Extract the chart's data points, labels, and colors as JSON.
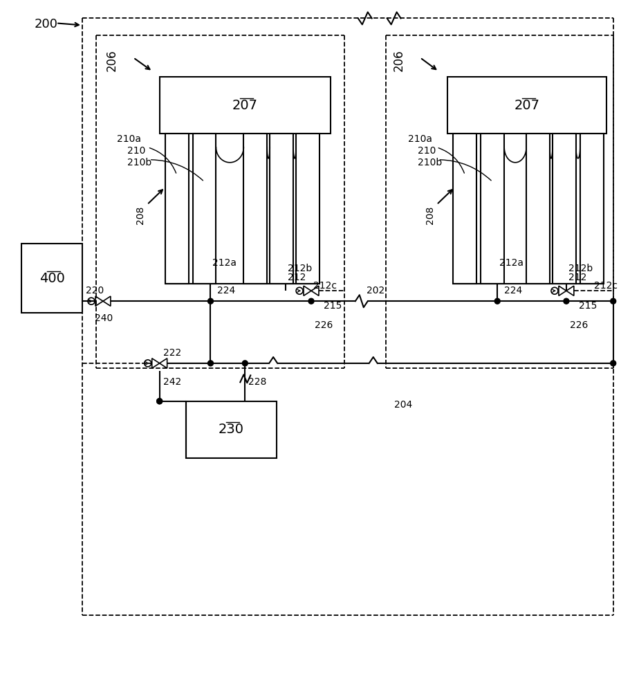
{
  "bg_color": "#ffffff",
  "lc": "#000000",
  "labels": {
    "200": "200",
    "202": "202",
    "204": "204",
    "206": "206",
    "207": "207",
    "208": "208",
    "210": "210",
    "210a": "210a",
    "210b": "210b",
    "212": "212",
    "212a": "212a",
    "212b": "212b",
    "212c": "212c",
    "215": "215",
    "220": "220",
    "222": "222",
    "224": "224",
    "226": "226",
    "228": "228",
    "230": "230",
    "240": "240",
    "242": "242",
    "400": "400"
  },
  "fs": 12,
  "fs_sm": 10
}
